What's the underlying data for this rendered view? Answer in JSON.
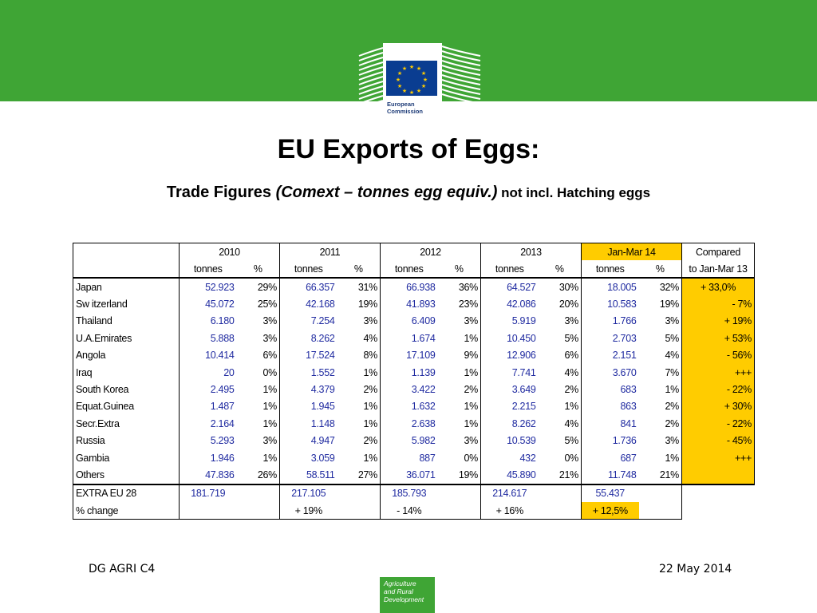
{
  "colors": {
    "band": "#3fa535",
    "highlight": "#ffcc00",
    "number": "#1f2aa0"
  },
  "logo": {
    "line1": "European",
    "line2": "Commission"
  },
  "title": "EU Exports of Eggs:",
  "subtitle": {
    "part1": "Trade Figures ",
    "part2": "(Comext – tonnes egg equiv.)",
    "part3": " not incl. Hatching eggs"
  },
  "table": {
    "years": [
      "2010",
      "2011",
      "2012",
      "2013",
      "Jan-Mar 14"
    ],
    "compared_line1": "Compared",
    "compared_line2": "to Jan-Mar 13",
    "unit_tonnes": "tonnes",
    "unit_pct": "%",
    "rows": [
      {
        "country": "Japan",
        "v": [
          "52.923",
          "66.357",
          "66.938",
          "64.527",
          "18.005"
        ],
        "p": [
          "29%",
          "31%",
          "36%",
          "30%",
          "32%"
        ],
        "cmp": "+ 33,0%"
      },
      {
        "country": "Sw itzerland",
        "v": [
          "45.072",
          "42.168",
          "41.893",
          "42.086",
          "10.583"
        ],
        "p": [
          "25%",
          "19%",
          "23%",
          "20%",
          "19%"
        ],
        "cmp": "- 7%"
      },
      {
        "country": "Thailand",
        "v": [
          "6.180",
          "7.254",
          "6.409",
          "5.919",
          "1.766"
        ],
        "p": [
          "3%",
          "3%",
          "3%",
          "3%",
          "3%"
        ],
        "cmp": "+ 19%"
      },
      {
        "country": "U.A.Emirates",
        "v": [
          "5.888",
          "8.262",
          "1.674",
          "10.450",
          "2.703"
        ],
        "p": [
          "3%",
          "4%",
          "1%",
          "5%",
          "5%"
        ],
        "cmp": "+ 53%"
      },
      {
        "country": "Angola",
        "v": [
          "10.414",
          "17.524",
          "17.109",
          "12.906",
          "2.151"
        ],
        "p": [
          "6%",
          "8%",
          "9%",
          "6%",
          "4%"
        ],
        "cmp": "- 56%"
      },
      {
        "country": "Iraq",
        "v": [
          "20",
          "1.552",
          "1.139",
          "7.741",
          "3.670"
        ],
        "p": [
          "0%",
          "1%",
          "1%",
          "4%",
          "7%"
        ],
        "cmp": "+++"
      },
      {
        "country": "South Korea",
        "v": [
          "2.495",
          "4.379",
          "3.422",
          "3.649",
          "683"
        ],
        "p": [
          "1%",
          "2%",
          "2%",
          "2%",
          "1%"
        ],
        "cmp": "- 22%"
      },
      {
        "country": "Equat.Guinea",
        "v": [
          "1.487",
          "1.945",
          "1.632",
          "2.215",
          "863"
        ],
        "p": [
          "1%",
          "1%",
          "1%",
          "1%",
          "2%"
        ],
        "cmp": "+ 30%"
      },
      {
        "country": "Secr.Extra",
        "v": [
          "2.164",
          "1.148",
          "2.638",
          "8.262",
          "841"
        ],
        "p": [
          "1%",
          "1%",
          "1%",
          "4%",
          "2%"
        ],
        "cmp": "- 22%"
      },
      {
        "country": "Russia",
        "v": [
          "5.293",
          "4.947",
          "5.982",
          "10.539",
          "1.736"
        ],
        "p": [
          "3%",
          "2%",
          "3%",
          "5%",
          "3%"
        ],
        "cmp": "- 45%"
      },
      {
        "country": "Gambia",
        "v": [
          "1.946",
          "3.059",
          "887",
          "432",
          "687"
        ],
        "p": [
          "1%",
          "1%",
          "0%",
          "0%",
          "1%"
        ],
        "cmp": "+++"
      },
      {
        "country": "Others",
        "v": [
          "47.836",
          "58.511",
          "36.071",
          "45.890",
          "11.748"
        ],
        "p": [
          "26%",
          "27%",
          "19%",
          "21%",
          "21%"
        ],
        "cmp": ""
      }
    ],
    "total": {
      "label": "EXTRA EU 28",
      "v": [
        "181.719",
        "217.105",
        "185.793",
        "214.617",
        "55.437"
      ]
    },
    "change": {
      "label": "% change",
      "v": [
        "",
        "+ 19%",
        "- 14%",
        "+ 16%",
        "+ 12,5%"
      ]
    }
  },
  "footer": {
    "left": "DG AGRI C4",
    "right": "22 May 2014",
    "badge": [
      "Agriculture",
      "and Rural",
      "Development"
    ]
  }
}
